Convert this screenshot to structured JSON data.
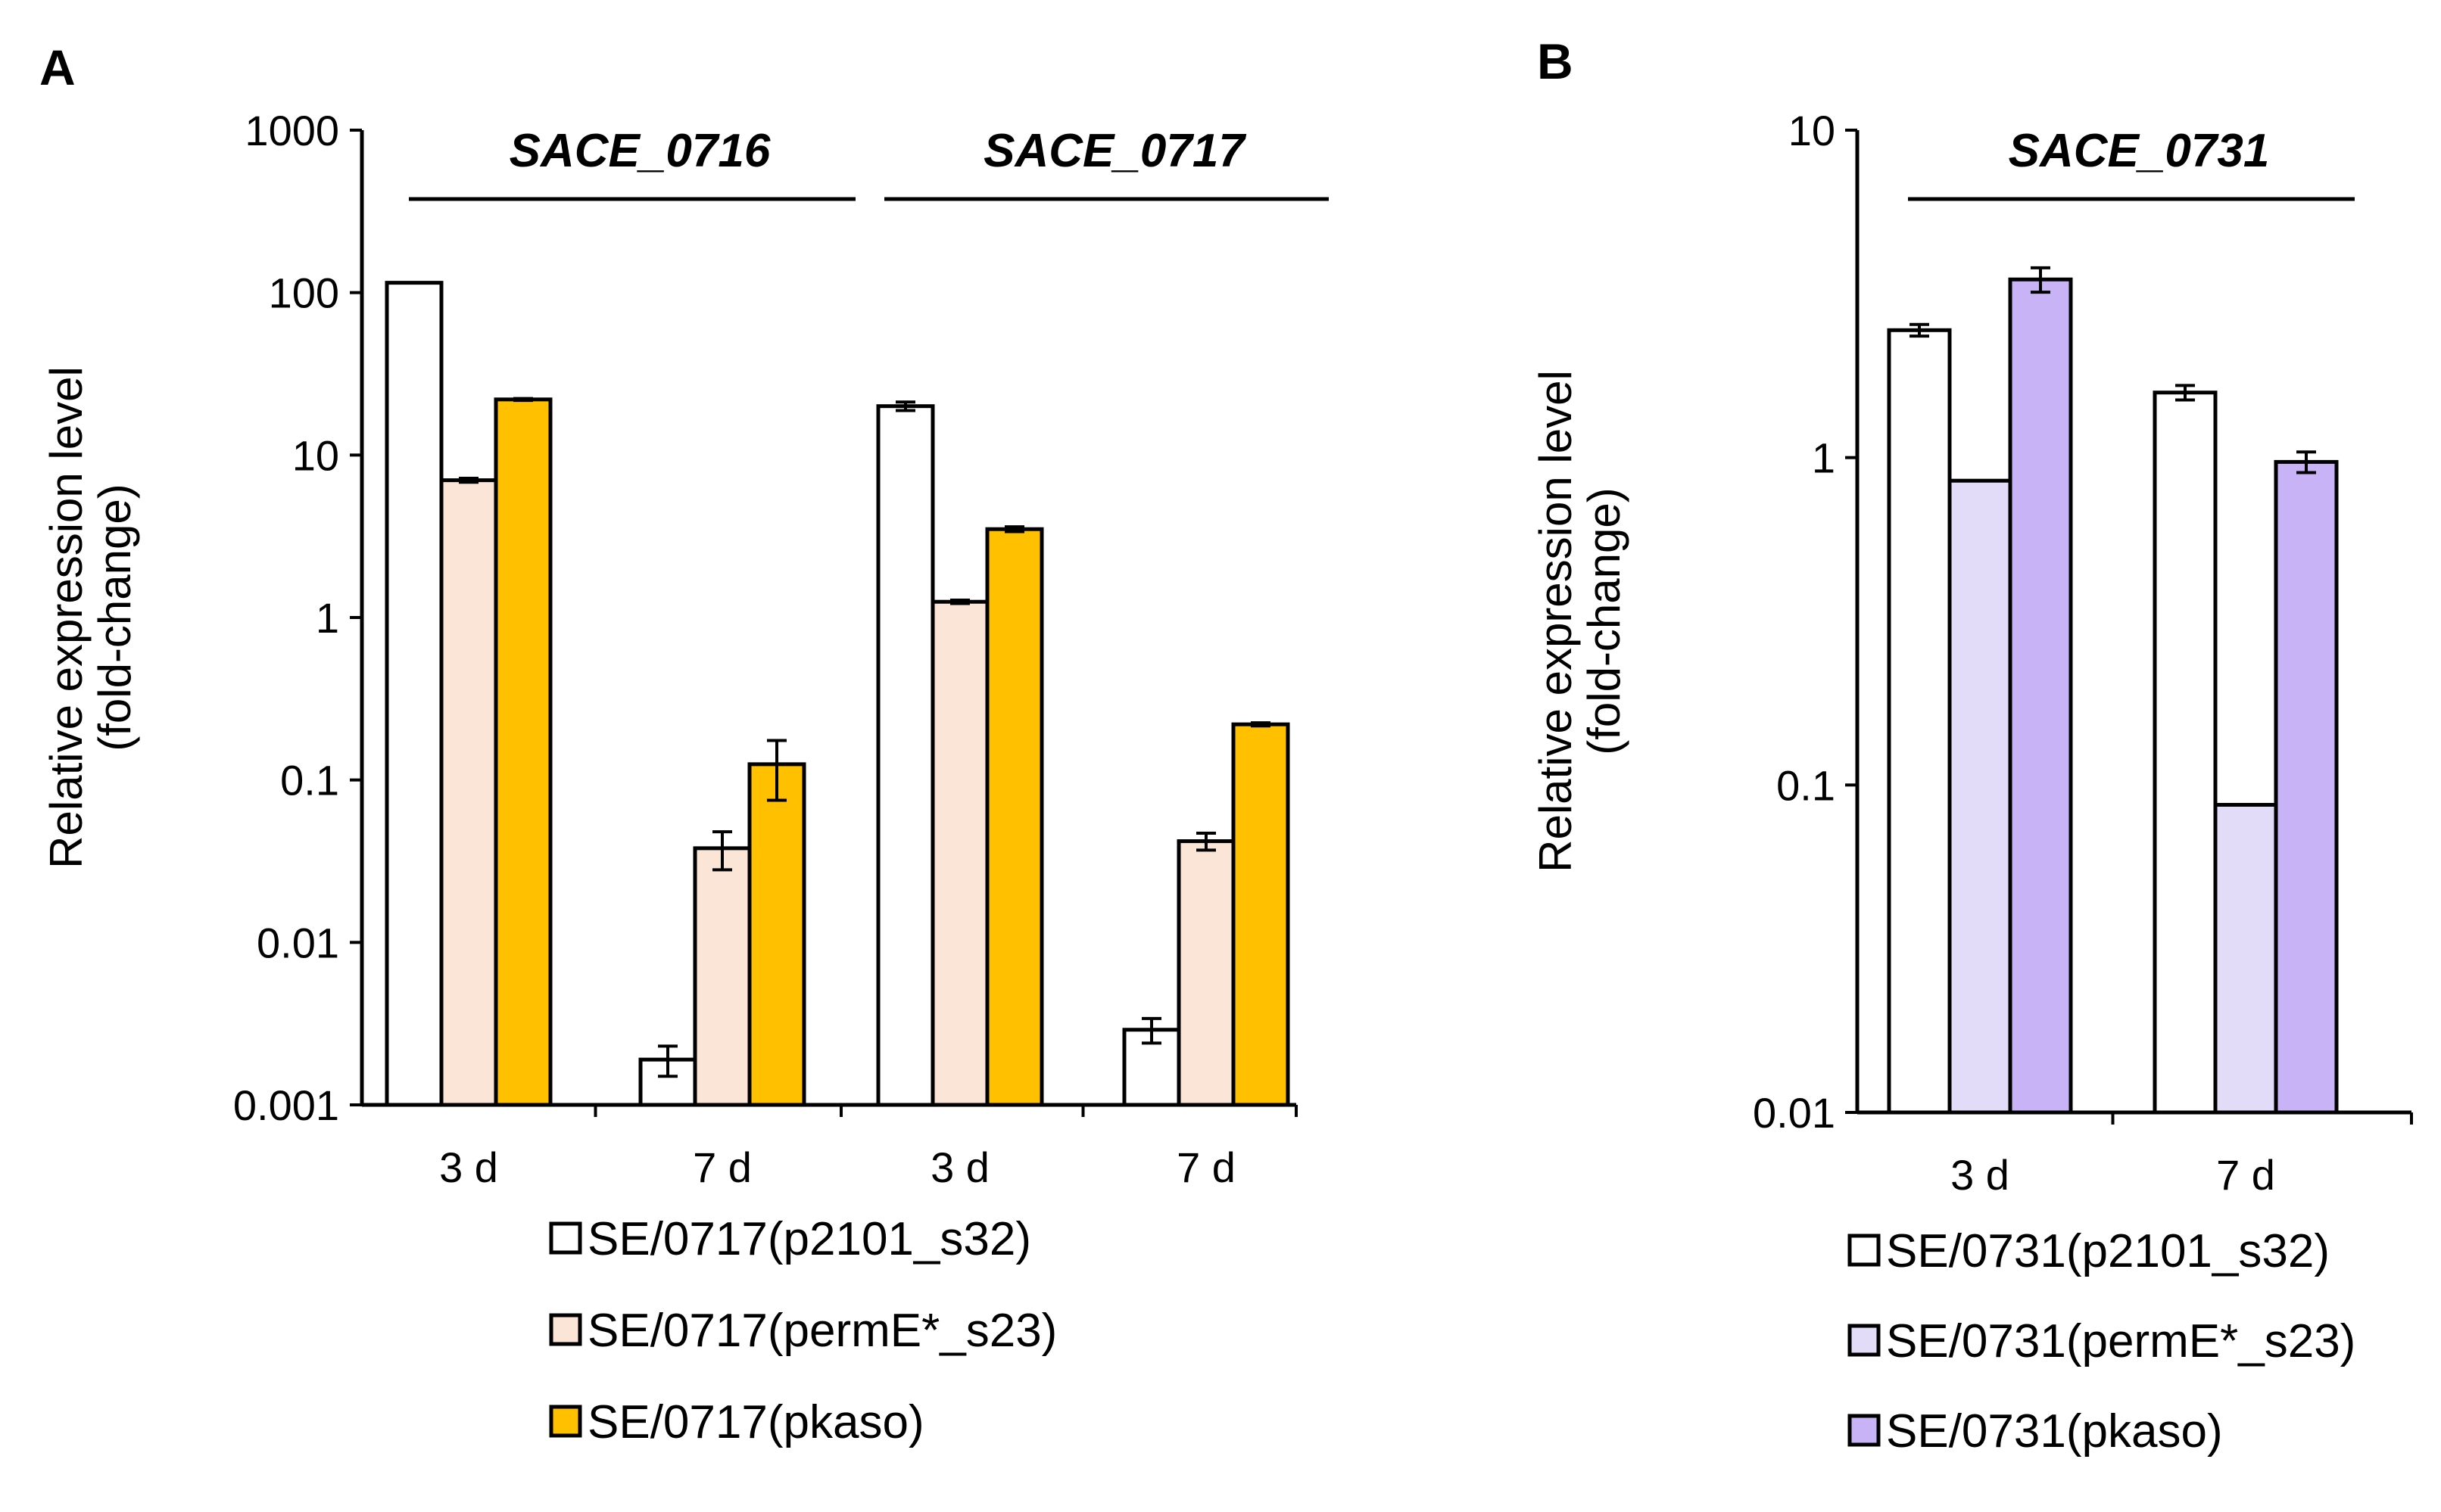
{
  "chart_data": [
    {
      "panel": "A",
      "type": "bar",
      "log_scale": true,
      "ylim": [
        0.001,
        1000
      ],
      "yticks": [
        "1000",
        "100",
        "10",
        "1",
        "0.1",
        "0.01",
        "0.001"
      ],
      "ylabel": [
        "Relative expression level",
        "(fold-change)"
      ],
      "groups": [
        {
          "gene": "SACE_0716",
          "categories": [
            "3 d",
            "7 d"
          ]
        },
        {
          "gene": "SACE_0717",
          "categories": [
            "3 d",
            "7 d"
          ]
        }
      ],
      "categories": [
        "3 d",
        "7 d",
        "3 d",
        "7 d"
      ],
      "series": [
        {
          "name": "SE/0717(p2101_s32)",
          "color": "#ffffff",
          "values": [
            115,
            0.0019,
            20,
            0.0029
          ],
          "error": [
            0,
            0.0004,
            1.2,
            0.0005
          ]
        },
        {
          "name": "SE/0717(permE*_s23)",
          "color": "#fbe5d6",
          "values": [
            7.0,
            0.038,
            1.25,
            0.042
          ],
          "error": [
            0.2,
            0.01,
            0.03,
            0.005
          ]
        },
        {
          "name": "SE/0717(pkaso)",
          "color": "#ffc000",
          "values": [
            22,
            0.125,
            3.5,
            0.22
          ],
          "error": [
            0.3,
            0.05,
            0.12,
            0.005
          ]
        }
      ],
      "grid": false,
      "legend_position": "bottom"
    },
    {
      "panel": "B",
      "type": "bar",
      "log_scale": true,
      "ylim": [
        0.01,
        10
      ],
      "yticks": [
        "10",
        "1",
        "0.1",
        "0.01"
      ],
      "ylabel": [
        "Relative expression level",
        "(fold-change)"
      ],
      "groups": [
        {
          "gene": "SACE_0731",
          "categories": [
            "3 d",
            "7 d"
          ]
        }
      ],
      "categories": [
        "3 d",
        "7 d"
      ],
      "series": [
        {
          "name": "SE/0731(p2101_s32)",
          "color": "#ffffff",
          "values": [
            2.45,
            1.58
          ],
          "error": [
            0.1,
            0.08
          ]
        },
        {
          "name": "SE/0731(permE*_s23)",
          "color": "#e2dcf9",
          "values": [
            0.85,
            0.087
          ],
          "error": [
            0,
            0
          ]
        },
        {
          "name": "SE/0731(pkaso)",
          "color": "#c7b3f5",
          "values": [
            3.5,
            0.97
          ],
          "error": [
            0.3,
            0.07
          ]
        }
      ],
      "grid": false,
      "legend_position": "bottom"
    }
  ]
}
